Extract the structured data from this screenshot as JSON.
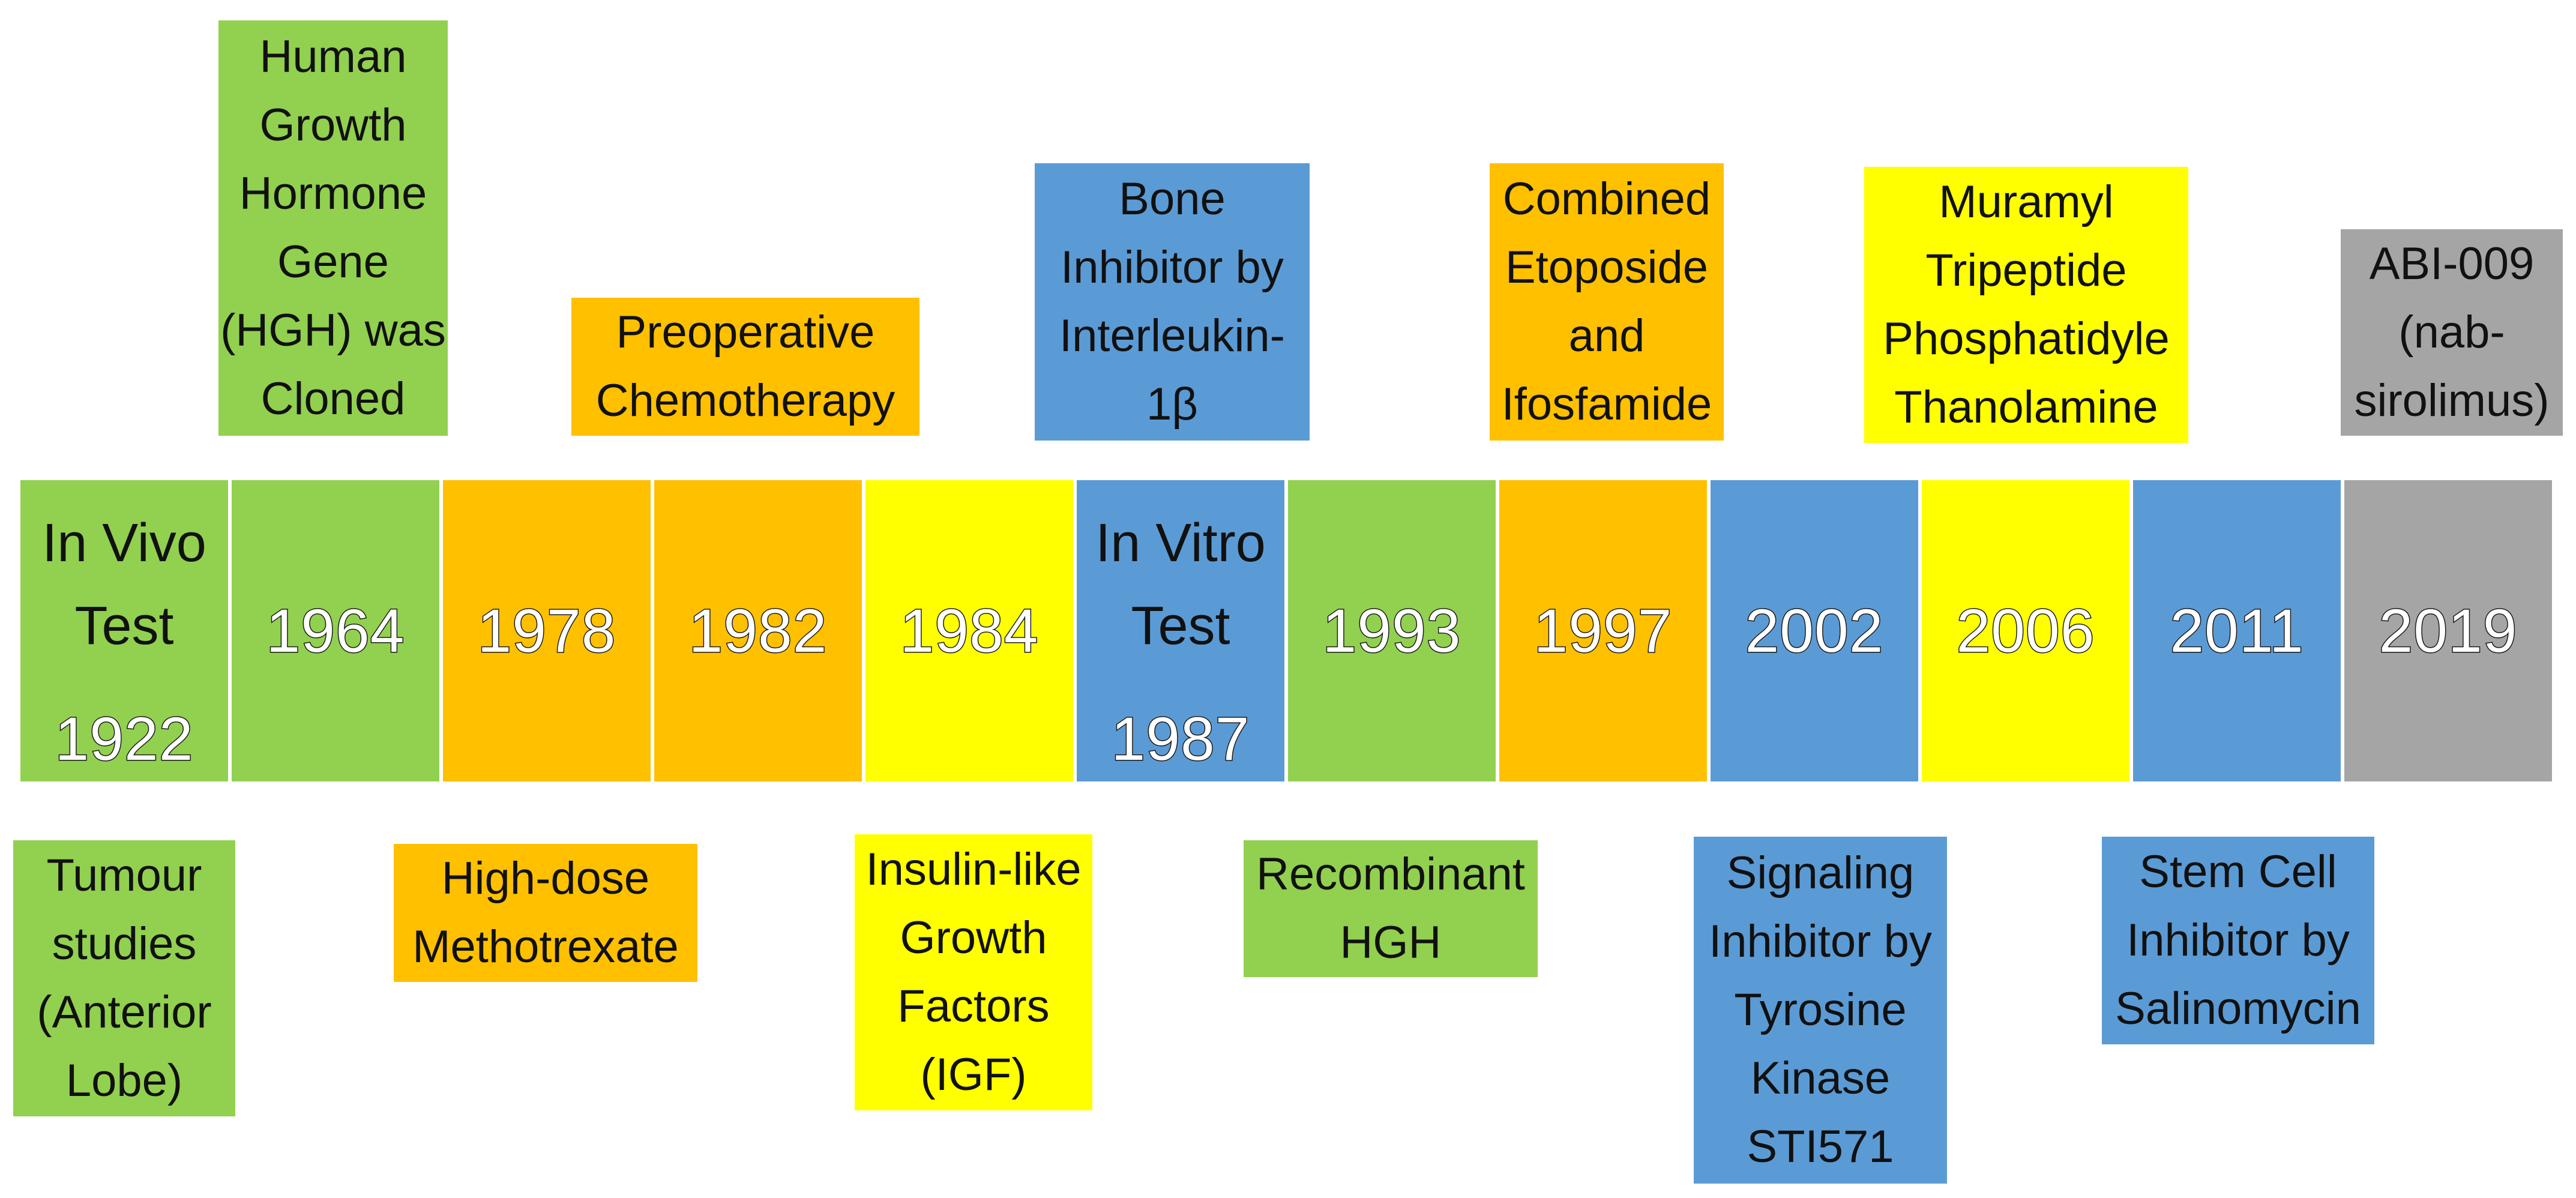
{
  "colors": {
    "green": "#92D050",
    "orange": "#FFC000",
    "yellow": "#FFFF00",
    "blue": "#5B9BD5",
    "gray": "#A5A5A5"
  },
  "timeline": {
    "cells": [
      {
        "label": "In Vivo\nTest",
        "year": "1922",
        "color": "green"
      },
      {
        "year": "1964",
        "color": "green"
      },
      {
        "year": "1978",
        "color": "orange"
      },
      {
        "year": "1982",
        "color": "orange"
      },
      {
        "year": "1984",
        "color": "yellow"
      },
      {
        "label": "In Vitro\nTest",
        "year": "1987",
        "color": "blue"
      },
      {
        "year": "1993",
        "color": "green"
      },
      {
        "year": "1997",
        "color": "orange"
      },
      {
        "year": "2002",
        "color": "blue"
      },
      {
        "year": "2006",
        "color": "yellow"
      },
      {
        "year": "2011",
        "color": "blue"
      },
      {
        "year": "2019",
        "color": "gray"
      }
    ]
  },
  "events_above": [
    {
      "text": "Human\nGrowth\nHormone\nGene\n(HGH) was\nCloned",
      "color": "green"
    },
    {
      "text": "Preoperative\nChemotherapy",
      "color": "orange"
    },
    {
      "text": "Bone\nInhibitor by\nInterleukin-\n1β",
      "color": "blue"
    },
    {
      "text": "Combined\nEtoposide\nand\nIfosfamide",
      "color": "orange"
    },
    {
      "text": "Muramyl\nTripeptide\nPhosphatidyle\nThanolamine",
      "color": "yellow"
    },
    {
      "text": "ABI-009\n(nab-\nsirolimus)",
      "color": "gray"
    }
  ],
  "events_below": [
    {
      "text": "Tumour\nstudies\n(Anterior\nLobe)",
      "color": "green"
    },
    {
      "text": "High-dose\nMethotrexate",
      "color": "orange"
    },
    {
      "text": "Insulin-like\nGrowth\nFactors\n(IGF)",
      "color": "yellow"
    },
    {
      "text": "Recombinant\nHGH",
      "color": "green"
    },
    {
      "text": "Signaling\nInhibitor by\nTyrosine\nKinase\nSTI571",
      "color": "blue"
    },
    {
      "text": "Stem Cell\nInhibitor by\nSalinomycin",
      "color": "blue"
    }
  ]
}
